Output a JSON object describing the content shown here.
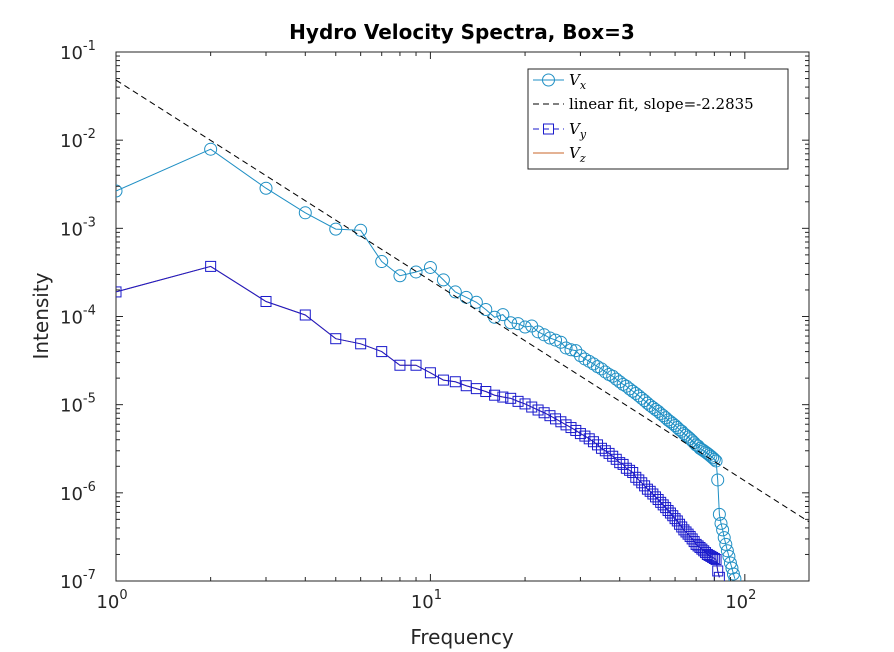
{
  "chart_data": {
    "type": "line",
    "title": "Hydro Velocity Spectra, Box=3",
    "xlabel": "Frequency",
    "ylabel": "Intensity",
    "xscale": "log",
    "yscale": "log",
    "xlim": [
      1,
      160
    ],
    "ylim": [
      1e-07,
      0.1
    ],
    "x_ticks": [
      {
        "base": "10",
        "exp": "0",
        "value": 1
      },
      {
        "base": "10",
        "exp": "1",
        "value": 10
      },
      {
        "base": "10",
        "exp": "2",
        "value": 100
      }
    ],
    "y_ticks": [
      {
        "base": "10",
        "exp": "-1",
        "value": 0.1
      },
      {
        "base": "10",
        "exp": "-2",
        "value": 0.01
      },
      {
        "base": "10",
        "exp": "-3",
        "value": 0.001
      },
      {
        "base": "10",
        "exp": "-4",
        "value": 0.0001
      },
      {
        "base": "10",
        "exp": "-5",
        "value": 1e-05
      },
      {
        "base": "10",
        "exp": "-6",
        "value": 1e-06
      },
      {
        "base": "10",
        "exp": "-7",
        "value": 1e-07
      }
    ],
    "grid": false,
    "legend_position": "top-right",
    "legend": [
      {
        "label": "V",
        "sub": "x",
        "marker": "circle",
        "color": "#1f8fc4",
        "style": "solid"
      },
      {
        "label": "linear fit, slope=-2.2835",
        "sub": "",
        "marker": "none",
        "color": "#000000",
        "style": "dashed"
      },
      {
        "label": "V",
        "sub": "y",
        "marker": "square",
        "color": "#1a1acc",
        "style": "dashed"
      },
      {
        "label": "V",
        "sub": "z",
        "marker": "none",
        "color": "#c8642a",
        "style": "solid"
      }
    ],
    "series": [
      {
        "name": "Vx",
        "color": "#1f8fc4",
        "marker": "circle",
        "x": [
          1,
          2,
          3,
          4,
          5,
          6,
          7,
          8,
          9,
          10,
          11,
          12,
          13,
          14,
          15,
          16,
          17,
          18,
          19,
          20,
          21,
          22,
          23,
          24,
          25,
          26,
          27,
          28,
          29,
          30,
          31,
          32,
          33,
          34,
          35,
          36,
          37,
          38,
          39,
          40,
          41,
          42,
          43,
          44,
          45,
          46,
          47,
          48,
          49,
          50,
          51,
          52,
          53,
          54,
          55,
          56,
          57,
          58,
          59,
          60,
          61,
          62,
          63,
          64,
          65,
          66,
          67,
          68,
          69,
          70,
          71,
          72,
          73,
          74,
          75,
          76,
          77,
          78,
          79,
          80,
          81,
          82,
          83,
          84,
          85,
          86,
          87,
          88,
          89,
          90,
          91,
          92,
          93
        ],
        "y": [
          0.00265,
          0.0079,
          0.00285,
          0.0015,
          0.00098,
          0.00095,
          0.00042,
          0.00029,
          0.00032,
          0.00036,
          0.00026,
          0.00019,
          0.000165,
          0.000145,
          0.00012,
          9.8e-05,
          0.000105,
          8.5e-05,
          8.3e-05,
          7.6e-05,
          7.8e-05,
          6.7e-05,
          6.2e-05,
          5.7e-05,
          5.4e-05,
          5.1e-05,
          4.4e-05,
          4.2e-05,
          4.1e-05,
          3.6e-05,
          3.3e-05,
          3.1e-05,
          2.9e-05,
          2.7e-05,
          2.55e-05,
          2.35e-05,
          2.2e-05,
          2.1e-05,
          1.95e-05,
          1.82e-05,
          1.7e-05,
          1.62e-05,
          1.51e-05,
          1.42e-05,
          1.34e-05,
          1.26e-05,
          1.18e-05,
          1.11e-05,
          1.04e-05,
          9.8e-06,
          9.3e-06,
          8.8e-06,
          8.4e-06,
          7.9e-06,
          7.5e-06,
          7.1e-06,
          6.7e-06,
          6.4e-06,
          6.1e-06,
          5.8e-06,
          5.5e-06,
          5.2e-06,
          5e-06,
          4.7e-06,
          4.5e-06,
          4.3e-06,
          4.1e-06,
          3.9e-06,
          3.7e-06,
          3.5e-06,
          3.4e-06,
          3.2e-06,
          3.1e-06,
          3e-06,
          2.9e-06,
          2.8e-06,
          2.7e-06,
          2.6e-06,
          2.5e-06,
          2.4e-06,
          2.3e-06,
          1.4e-06,
          5.7e-07,
          4.5e-07,
          3.8e-07,
          3.1e-07,
          2.6e-07,
          2.2e-07,
          1.9e-07,
          1.6e-07,
          1.4e-07,
          1.2e-07,
          1.06e-07
        ]
      },
      {
        "name": "linear fit, slope=-2.2835",
        "color": "#000000",
        "style": "dashed",
        "x": [
          1,
          160
        ],
        "y": [
          0.048,
          4.7e-07
        ]
      },
      {
        "name": "Vy",
        "color": "#1a1acc",
        "marker": "square",
        "x": [
          1,
          2,
          3,
          4,
          5,
          6,
          7,
          8,
          9,
          10,
          11,
          12,
          13,
          14,
          15,
          16,
          17,
          18,
          19,
          20,
          21,
          22,
          23,
          24,
          25,
          26,
          27,
          28,
          29,
          30,
          31,
          32,
          33,
          34,
          35,
          36,
          37,
          38,
          39,
          40,
          41,
          42,
          43,
          44,
          45,
          46,
          47,
          48,
          49,
          50,
          51,
          52,
          53,
          54,
          55,
          56,
          57,
          58,
          59,
          60,
          61,
          62,
          63,
          64,
          65,
          66,
          67,
          68,
          69,
          70,
          71,
          72,
          73,
          74,
          75,
          76,
          77,
          78,
          79,
          80,
          81,
          82,
          83
        ],
        "y": [
          0.00019,
          0.00037,
          0.000148,
          0.000104,
          5.6e-05,
          4.9e-05,
          4e-05,
          2.8e-05,
          2.8e-05,
          2.3e-05,
          1.9e-05,
          1.82e-05,
          1.64e-05,
          1.52e-05,
          1.41e-05,
          1.28e-05,
          1.22e-05,
          1.18e-05,
          1.09e-05,
          1.02e-05,
          9.4e-06,
          8.7e-06,
          8.1e-06,
          7.5e-06,
          6.9e-06,
          6.4e-06,
          5.9e-06,
          5.5e-06,
          5.1e-06,
          4.7e-06,
          4.4e-06,
          4.1e-06,
          3.8e-06,
          3.5e-06,
          3.2e-06,
          3e-06,
          2.8e-06,
          2.6e-06,
          2.4e-06,
          2.2e-06,
          2.1e-06,
          1.9e-06,
          1.8e-06,
          1.7e-06,
          1.5e-06,
          1.4e-06,
          1.3e-06,
          1.2e-06,
          1.1e-06,
          1.04e-06,
          9.7e-07,
          9e-07,
          8.4e-07,
          7.8e-07,
          7.3e-07,
          6.8e-07,
          6.3e-07,
          5.9e-07,
          5.5e-07,
          5.1e-07,
          4.8e-07,
          4.4e-07,
          4.1e-07,
          3.8e-07,
          3.6e-07,
          3.4e-07,
          3.2e-07,
          3e-07,
          2.8e-07,
          2.6e-07,
          2.5e-07,
          2.4e-07,
          2.3e-07,
          2.2e-07,
          2.1e-07,
          2e-07,
          1.95e-07,
          1.9e-07,
          1.85e-07,
          1.8e-07,
          1.75e-07,
          1.3e-07,
          1.1e-07
        ]
      },
      {
        "name": "Vz",
        "color": "#c8642a",
        "marker": "none",
        "x": [
          1,
          2,
          3,
          4,
          5,
          6,
          7,
          8,
          9,
          10,
          11,
          12,
          13,
          14,
          15,
          16,
          17,
          18,
          19,
          20,
          21,
          22,
          23,
          24,
          25,
          26,
          27,
          28,
          29,
          30,
          31,
          32,
          33,
          34,
          35,
          36,
          37,
          38,
          39,
          40,
          41,
          42,
          43,
          44,
          45,
          46,
          47,
          48,
          49,
          50,
          51,
          52,
          53,
          54,
          55,
          56,
          57,
          58,
          59,
          60,
          61,
          62,
          63,
          64,
          65,
          66,
          67,
          68,
          69,
          70,
          71,
          72,
          73,
          74,
          75,
          76,
          77,
          78,
          79,
          80,
          81,
          82,
          83
        ],
        "y": [
          0.00019,
          0.00037,
          0.000148,
          0.000104,
          5.6e-05,
          4.9e-05,
          4e-05,
          2.8e-05,
          2.8e-05,
          2.3e-05,
          1.9e-05,
          1.82e-05,
          1.64e-05,
          1.52e-05,
          1.41e-05,
          1.28e-05,
          1.22e-05,
          1.18e-05,
          1.09e-05,
          1.02e-05,
          9.4e-06,
          8.7e-06,
          8.1e-06,
          7.5e-06,
          6.9e-06,
          6.4e-06,
          5.9e-06,
          5.5e-06,
          5.1e-06,
          4.7e-06,
          4.4e-06,
          4.1e-06,
          3.8e-06,
          3.5e-06,
          3.2e-06,
          3e-06,
          2.8e-06,
          2.6e-06,
          2.4e-06,
          2.2e-06,
          2.1e-06,
          1.9e-06,
          1.8e-06,
          1.7e-06,
          1.5e-06,
          1.4e-06,
          1.3e-06,
          1.2e-06,
          1.1e-06,
          1.04e-06,
          9.7e-07,
          9e-07,
          8.4e-07,
          7.8e-07,
          7.3e-07,
          6.8e-07,
          6.3e-07,
          5.9e-07,
          5.5e-07,
          5.1e-07,
          4.8e-07,
          4.4e-07,
          4.1e-07,
          3.8e-07,
          3.6e-07,
          3.4e-07,
          3.2e-07,
          3e-07,
          2.8e-07,
          2.6e-07,
          2.5e-07,
          2.4e-07,
          2.3e-07,
          2.2e-07,
          2.1e-07,
          2e-07,
          1.95e-07,
          1.9e-07,
          1.85e-07,
          1.8e-07,
          1.75e-07,
          1.3e-07,
          1.1e-07
        ]
      }
    ]
  }
}
